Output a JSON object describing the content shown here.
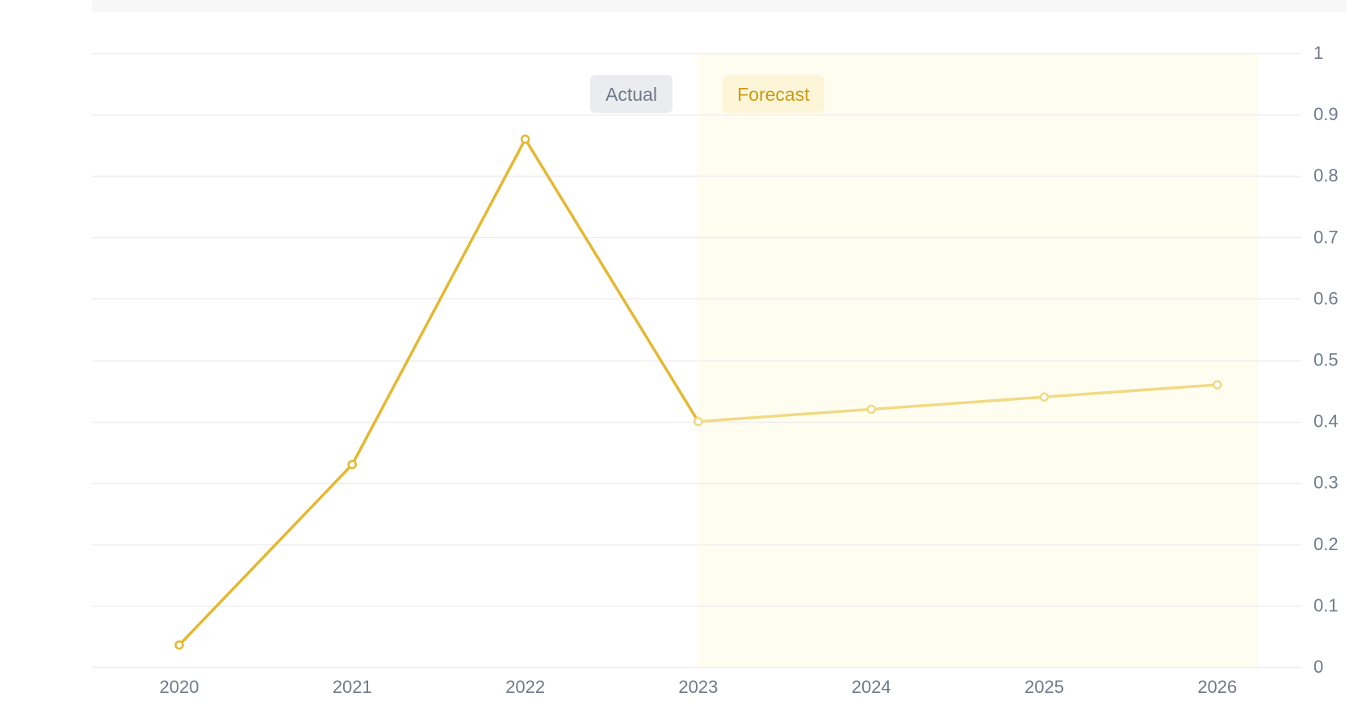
{
  "chart_data": {
    "type": "line",
    "title": "",
    "xlabel": "",
    "ylabel": "",
    "categories": [
      "2020",
      "2021",
      "2022",
      "2023",
      "2024",
      "2025",
      "2026"
    ],
    "series": [
      {
        "segment": "actual",
        "x": [
          "2020",
          "2021",
          "2022",
          "2023"
        ],
        "values": [
          0.036,
          0.33,
          0.86,
          0.4
        ],
        "color": "#e5b832"
      },
      {
        "segment": "forecast",
        "x": [
          "2023",
          "2024",
          "2025",
          "2026"
        ],
        "values": [
          0.4,
          0.42,
          0.44,
          0.46
        ],
        "color": "#f0da84"
      }
    ],
    "ylim": [
      0,
      1
    ],
    "yticks": [
      "0",
      "0.1",
      "0.2",
      "0.3",
      "0.4",
      "0.5",
      "0.6",
      "0.7",
      "0.8",
      "0.9",
      "1"
    ],
    "grid": true,
    "y_axis_side": "right",
    "badges": {
      "actual": "Actual",
      "forecast": "Forecast"
    },
    "forecast_region_start": "2023",
    "colors": {
      "forecast_region": "#fffdf0",
      "grid": "#eeeeee",
      "tick_text": "#707a8a",
      "actual_badge_bg": "#eaecef",
      "actual_badge_text": "#707a8a",
      "forecast_badge_bg": "#fdf5d8",
      "forecast_badge_text": "#c99b13"
    }
  }
}
